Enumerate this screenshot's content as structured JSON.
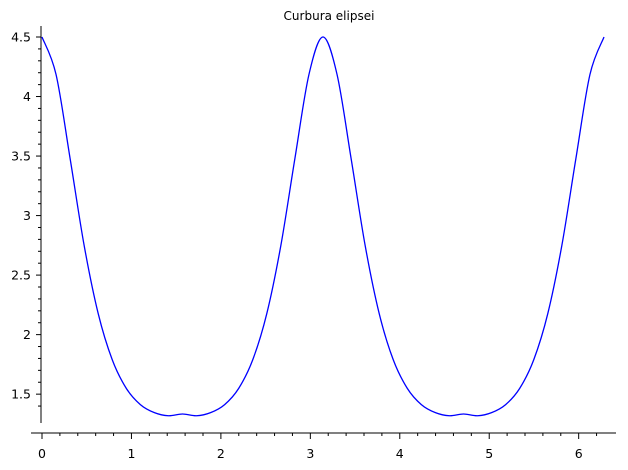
{
  "chart_data": {
    "type": "line",
    "title": "Curbura elipsei",
    "xlabel": "",
    "ylabel": "",
    "xlim": [
      0,
      6.2832
    ],
    "ylim": [
      1.3333,
      4.5
    ],
    "grid": false,
    "x_ticks": [
      "0",
      "1",
      "2",
      "3",
      "4",
      "5",
      "6"
    ],
    "y_ticks": [
      "1.5",
      "2",
      "2.5",
      "3",
      "3.5",
      "4",
      "4.5"
    ],
    "series": [
      {
        "color": "#0000ff",
        "x": [
          0,
          0.1571,
          0.3142,
          0.4712,
          0.6283,
          0.7854,
          0.9425,
          1.0996,
          1.2566,
          1.4137,
          1.5708,
          1.7279,
          1.885,
          2.042,
          2.1991,
          2.3562,
          2.5133,
          2.6704,
          2.8274,
          2.9845,
          3.1416,
          3.2987,
          3.4558,
          3.6128,
          3.7699,
          3.927,
          4.0841,
          4.2412,
          4.3982,
          4.5553,
          4.7124,
          4.8695,
          5.0265,
          5.1836,
          5.3407,
          5.4978,
          5.6549,
          5.8119,
          5.969,
          6.1261,
          6.2832
        ],
        "y": [
          4.5,
          4.1848,
          3.4794,
          2.7488,
          2.1769,
          1.7889,
          1.5487,
          1.4124,
          1.3449,
          1.3187,
          1.3333,
          1.3187,
          1.3449,
          1.4124,
          1.5487,
          1.7889,
          2.1769,
          2.7488,
          3.4794,
          4.1848,
          4.5,
          4.1848,
          3.4794,
          2.7488,
          2.1769,
          1.7889,
          1.5487,
          1.4124,
          1.3449,
          1.3187,
          1.3333,
          1.3187,
          1.3449,
          1.4124,
          1.5487,
          1.7889,
          2.1769,
          2.7488,
          3.4794,
          4.1848,
          4.5
        ]
      }
    ]
  }
}
